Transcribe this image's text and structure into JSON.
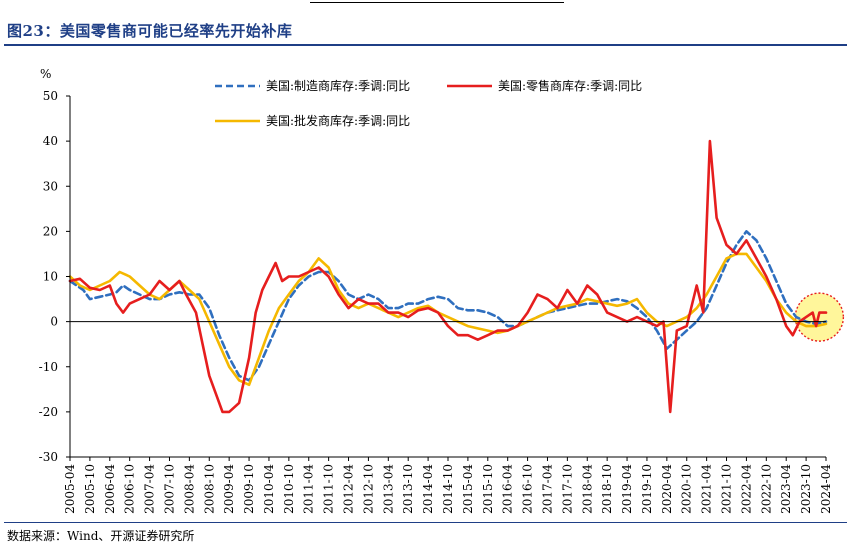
{
  "figure": {
    "title": "图23：美国零售商可能已经率先开始补库",
    "source": "数据来源：Wind、开源证券研究所"
  },
  "colors": {
    "title": "#1f3f86",
    "manufacturing": "#2f6fbf",
    "retail": "#e61e1e",
    "wholesale": "#f5b800",
    "highlight_fill": "#fff48a",
    "highlight_stroke": "#e61e1e"
  },
  "chart_data": {
    "type": "line",
    "title": "",
    "xlabel": "",
    "ylabel": "%",
    "ylim": [
      -30,
      50
    ],
    "yticks": [
      -30,
      -20,
      -10,
      0,
      10,
      20,
      30,
      40,
      50
    ],
    "x_start": "2005-04",
    "x_end": "2024-04",
    "xticks": [
      "2005-04",
      "2005-10",
      "2006-04",
      "2006-10",
      "2007-04",
      "2007-10",
      "2008-04",
      "2008-10",
      "2009-04",
      "2009-10",
      "2010-04",
      "2010-10",
      "2011-04",
      "2011-10",
      "2012-04",
      "2012-10",
      "2013-04",
      "2013-10",
      "2014-04",
      "2014-10",
      "2015-04",
      "2015-10",
      "2016-04",
      "2016-10",
      "2017-04",
      "2017-10",
      "2018-04",
      "2018-10",
      "2019-04",
      "2019-10",
      "2020-04",
      "2020-10",
      "2021-04",
      "2021-10",
      "2022-04",
      "2022-10",
      "2023-04",
      "2023-10",
      "2024-04"
    ],
    "grid": false,
    "legend": "top",
    "highlight": {
      "x_center": "2024-02",
      "y_center": 1
    },
    "series": [
      {
        "name": "美国:制造商库存:季调:同比",
        "style": "dashed",
        "points": [
          [
            "2005-04",
            9
          ],
          [
            "2005-08",
            7
          ],
          [
            "2005-10",
            5
          ],
          [
            "2006-01",
            5.5
          ],
          [
            "2006-04",
            6
          ],
          [
            "2006-06",
            6.5
          ],
          [
            "2006-08",
            8
          ],
          [
            "2006-10",
            7
          ],
          [
            "2007-01",
            6
          ],
          [
            "2007-04",
            5
          ],
          [
            "2007-07",
            5
          ],
          [
            "2007-10",
            6
          ],
          [
            "2008-01",
            6.5
          ],
          [
            "2008-04",
            6
          ],
          [
            "2008-07",
            6
          ],
          [
            "2008-10",
            3
          ],
          [
            "2009-01",
            -3
          ],
          [
            "2009-04",
            -8
          ],
          [
            "2009-07",
            -12
          ],
          [
            "2009-10",
            -13
          ],
          [
            "2010-01",
            -10
          ],
          [
            "2010-04",
            -5
          ],
          [
            "2010-07",
            0
          ],
          [
            "2010-10",
            5
          ],
          [
            "2011-01",
            8
          ],
          [
            "2011-04",
            10
          ],
          [
            "2011-07",
            11
          ],
          [
            "2011-10",
            11
          ],
          [
            "2012-01",
            9
          ],
          [
            "2012-04",
            6
          ],
          [
            "2012-07",
            5
          ],
          [
            "2012-10",
            6
          ],
          [
            "2013-01",
            5
          ],
          [
            "2013-04",
            3
          ],
          [
            "2013-07",
            3
          ],
          [
            "2013-10",
            4
          ],
          [
            "2014-01",
            4
          ],
          [
            "2014-04",
            5
          ],
          [
            "2014-07",
            5.5
          ],
          [
            "2014-10",
            5
          ],
          [
            "2015-01",
            3
          ],
          [
            "2015-04",
            2.5
          ],
          [
            "2015-07",
            2.5
          ],
          [
            "2015-10",
            2
          ],
          [
            "2016-01",
            1
          ],
          [
            "2016-04",
            -1
          ],
          [
            "2016-07",
            -1
          ],
          [
            "2016-10",
            0
          ],
          [
            "2017-01",
            1
          ],
          [
            "2017-04",
            2
          ],
          [
            "2017-07",
            2.5
          ],
          [
            "2017-10",
            3
          ],
          [
            "2018-01",
            3.5
          ],
          [
            "2018-04",
            4
          ],
          [
            "2018-07",
            4
          ],
          [
            "2018-10",
            4.5
          ],
          [
            "2019-01",
            5
          ],
          [
            "2019-04",
            4.5
          ],
          [
            "2019-07",
            3
          ],
          [
            "2019-10",
            1
          ],
          [
            "2020-01",
            -2
          ],
          [
            "2020-04",
            -6
          ],
          [
            "2020-07",
            -4
          ],
          [
            "2020-10",
            -2
          ],
          [
            "2021-01",
            0
          ],
          [
            "2021-04",
            3
          ],
          [
            "2021-07",
            8
          ],
          [
            "2021-10",
            13
          ],
          [
            "2022-01",
            17
          ],
          [
            "2022-04",
            20
          ],
          [
            "2022-07",
            18
          ],
          [
            "2022-10",
            14
          ],
          [
            "2023-01",
            9
          ],
          [
            "2023-04",
            4
          ],
          [
            "2023-07",
            1
          ],
          [
            "2023-10",
            0
          ],
          [
            "2024-01",
            -0.5
          ],
          [
            "2024-04",
            0
          ]
        ]
      },
      {
        "name": "美国:零售商库存:季调:同比",
        "style": "solid",
        "points": [
          [
            "2005-04",
            9
          ],
          [
            "2005-07",
            9.5
          ],
          [
            "2005-10",
            7.5
          ],
          [
            "2006-01",
            7
          ],
          [
            "2006-04",
            8
          ],
          [
            "2006-06",
            4
          ],
          [
            "2006-08",
            2
          ],
          [
            "2006-10",
            4
          ],
          [
            "2007-01",
            5
          ],
          [
            "2007-04",
            6
          ],
          [
            "2007-07",
            9
          ],
          [
            "2007-10",
            7
          ],
          [
            "2008-01",
            9
          ],
          [
            "2008-03",
            6
          ],
          [
            "2008-06",
            2
          ],
          [
            "2008-08",
            -5
          ],
          [
            "2008-10",
            -12
          ],
          [
            "2008-12",
            -16
          ],
          [
            "2009-02",
            -20
          ],
          [
            "2009-04",
            -20
          ],
          [
            "2009-07",
            -18
          ],
          [
            "2009-10",
            -8
          ],
          [
            "2009-12",
            2
          ],
          [
            "2010-02",
            7
          ],
          [
            "2010-04",
            10
          ],
          [
            "2010-06",
            13
          ],
          [
            "2010-08",
            9
          ],
          [
            "2010-10",
            10
          ],
          [
            "2011-01",
            10
          ],
          [
            "2011-04",
            11
          ],
          [
            "2011-07",
            12
          ],
          [
            "2011-10",
            10
          ],
          [
            "2012-01",
            6
          ],
          [
            "2012-04",
            3
          ],
          [
            "2012-07",
            5
          ],
          [
            "2012-10",
            4
          ],
          [
            "2013-01",
            4
          ],
          [
            "2013-04",
            2
          ],
          [
            "2013-07",
            2
          ],
          [
            "2013-10",
            1
          ],
          [
            "2014-01",
            2.5
          ],
          [
            "2014-04",
            3
          ],
          [
            "2014-07",
            2
          ],
          [
            "2014-10",
            -1
          ],
          [
            "2015-01",
            -3
          ],
          [
            "2015-04",
            -3
          ],
          [
            "2015-07",
            -4
          ],
          [
            "2015-10",
            -3
          ],
          [
            "2016-01",
            -2
          ],
          [
            "2016-04",
            -2
          ],
          [
            "2016-07",
            -1
          ],
          [
            "2016-10",
            2
          ],
          [
            "2017-01",
            6
          ],
          [
            "2017-04",
            5
          ],
          [
            "2017-07",
            3
          ],
          [
            "2017-10",
            7
          ],
          [
            "2018-01",
            4
          ],
          [
            "2018-04",
            8
          ],
          [
            "2018-07",
            6
          ],
          [
            "2018-10",
            2
          ],
          [
            "2019-01",
            1
          ],
          [
            "2019-04",
            0
          ],
          [
            "2019-07",
            1
          ],
          [
            "2019-10",
            0
          ],
          [
            "2020-01",
            -1
          ],
          [
            "2020-03",
            0
          ],
          [
            "2020-05",
            -20
          ],
          [
            "2020-07",
            -2
          ],
          [
            "2020-10",
            -1
          ],
          [
            "2021-01",
            8
          ],
          [
            "2021-03",
            2
          ],
          [
            "2021-05",
            40
          ],
          [
            "2021-07",
            23
          ],
          [
            "2021-10",
            17
          ],
          [
            "2022-01",
            15
          ],
          [
            "2022-04",
            18
          ],
          [
            "2022-07",
            14
          ],
          [
            "2022-10",
            10
          ],
          [
            "2023-01",
            5
          ],
          [
            "2023-04",
            -1
          ],
          [
            "2023-06",
            -3
          ],
          [
            "2023-08",
            0
          ],
          [
            "2023-10",
            1
          ],
          [
            "2023-12",
            2
          ],
          [
            "2024-01",
            -1
          ],
          [
            "2024-02",
            2
          ],
          [
            "2024-04",
            2
          ]
        ]
      },
      {
        "name": "美国:批发商库存:季调:同比",
        "style": "solid",
        "points": [
          [
            "2005-04",
            10
          ],
          [
            "2005-07",
            8
          ],
          [
            "2005-10",
            7
          ],
          [
            "2006-01",
            8
          ],
          [
            "2006-04",
            9
          ],
          [
            "2006-07",
            11
          ],
          [
            "2006-10",
            10
          ],
          [
            "2007-01",
            8
          ],
          [
            "2007-04",
            6
          ],
          [
            "2007-07",
            5
          ],
          [
            "2007-10",
            7
          ],
          [
            "2008-01",
            9
          ],
          [
            "2008-04",
            7
          ],
          [
            "2008-07",
            5
          ],
          [
            "2008-10",
            0
          ],
          [
            "2009-01",
            -5
          ],
          [
            "2009-04",
            -10
          ],
          [
            "2009-07",
            -13
          ],
          [
            "2009-10",
            -14
          ],
          [
            "2010-01",
            -8
          ],
          [
            "2010-04",
            -2
          ],
          [
            "2010-07",
            3
          ],
          [
            "2010-10",
            6
          ],
          [
            "2011-01",
            9
          ],
          [
            "2011-04",
            11
          ],
          [
            "2011-07",
            14
          ],
          [
            "2011-10",
            12
          ],
          [
            "2012-01",
            7
          ],
          [
            "2012-04",
            4
          ],
          [
            "2012-07",
            3
          ],
          [
            "2012-10",
            4
          ],
          [
            "2013-01",
            3
          ],
          [
            "2013-04",
            2
          ],
          [
            "2013-07",
            1
          ],
          [
            "2013-10",
            2
          ],
          [
            "2014-01",
            3
          ],
          [
            "2014-04",
            3.5
          ],
          [
            "2014-07",
            2
          ],
          [
            "2014-10",
            1
          ],
          [
            "2015-01",
            0
          ],
          [
            "2015-04",
            -1
          ],
          [
            "2015-07",
            -1.5
          ],
          [
            "2015-10",
            -2
          ],
          [
            "2016-01",
            -2.5
          ],
          [
            "2016-04",
            -2
          ],
          [
            "2016-07",
            -1
          ],
          [
            "2016-10",
            0
          ],
          [
            "2017-01",
            1
          ],
          [
            "2017-04",
            2
          ],
          [
            "2017-07",
            3
          ],
          [
            "2017-10",
            3.5
          ],
          [
            "2018-01",
            4
          ],
          [
            "2018-04",
            5
          ],
          [
            "2018-07",
            4.5
          ],
          [
            "2018-10",
            4
          ],
          [
            "2019-01",
            3.5
          ],
          [
            "2019-04",
            4
          ],
          [
            "2019-07",
            5
          ],
          [
            "2019-10",
            2
          ],
          [
            "2020-01",
            0
          ],
          [
            "2020-04",
            -1
          ],
          [
            "2020-07",
            0
          ],
          [
            "2020-10",
            1
          ],
          [
            "2021-01",
            3
          ],
          [
            "2021-04",
            6
          ],
          [
            "2021-07",
            10
          ],
          [
            "2021-10",
            14
          ],
          [
            "2022-01",
            15
          ],
          [
            "2022-04",
            15
          ],
          [
            "2022-07",
            12
          ],
          [
            "2022-10",
            9
          ],
          [
            "2023-01",
            5
          ],
          [
            "2023-04",
            2
          ],
          [
            "2023-07",
            0
          ],
          [
            "2023-10",
            -1
          ],
          [
            "2024-01",
            -1
          ],
          [
            "2024-04",
            -0.5
          ]
        ]
      }
    ]
  }
}
